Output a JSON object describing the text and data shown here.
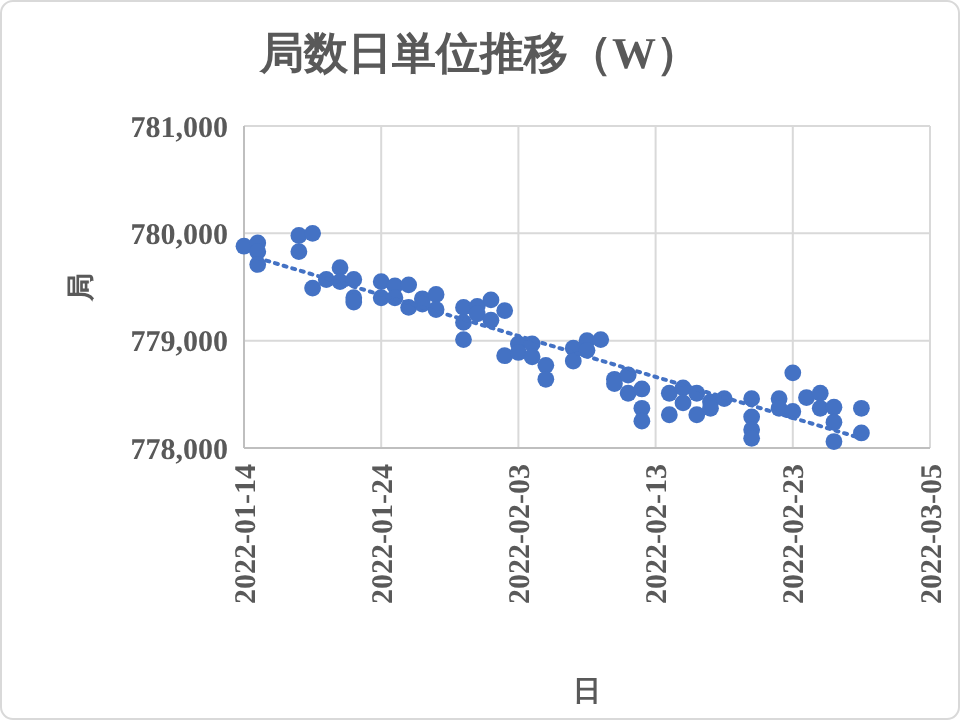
{
  "chart_data": {
    "type": "scatter",
    "title": "局数日単位推移（W）",
    "xlabel": "日",
    "ylabel": "局",
    "xlim": [
      "2022-01-14",
      "2022-03-05"
    ],
    "xticks": [
      "2022-01-14",
      "2022-01-24",
      "2022-02-03",
      "2022-02-13",
      "2022-02-23",
      "2022-03-05"
    ],
    "ylim": [
      778000,
      781000
    ],
    "yticks": [
      {
        "value": 778000,
        "label": "778,000"
      },
      {
        "value": 779000,
        "label": "779,000"
      },
      {
        "value": 780000,
        "label": "780,000"
      },
      {
        "value": 781000,
        "label": "781,000"
      }
    ],
    "grid": true,
    "marker": "circle",
    "series": [
      {
        "color": "#4472c4",
        "x": [
          "2022-01-14",
          "2022-01-15",
          "2022-01-15",
          "2022-01-15",
          "2022-01-18",
          "2022-01-18",
          "2022-01-19",
          "2022-01-19",
          "2022-01-20",
          "2022-01-21",
          "2022-01-21",
          "2022-01-22",
          "2022-01-22",
          "2022-01-22",
          "2022-01-24",
          "2022-01-24",
          "2022-01-25",
          "2022-01-25",
          "2022-01-26",
          "2022-01-26",
          "2022-01-27",
          "2022-01-27",
          "2022-01-28",
          "2022-01-28",
          "2022-01-30",
          "2022-01-30",
          "2022-01-30",
          "2022-01-31",
          "2022-01-31",
          "2022-02-01",
          "2022-02-01",
          "2022-02-02",
          "2022-02-02",
          "2022-02-03",
          "2022-02-03",
          "2022-02-04",
          "2022-02-04",
          "2022-02-05",
          "2022-02-05",
          "2022-02-07",
          "2022-02-07",
          "2022-02-08",
          "2022-02-08",
          "2022-02-09",
          "2022-02-10",
          "2022-02-10",
          "2022-02-11",
          "2022-02-11",
          "2022-02-12",
          "2022-02-12",
          "2022-02-12",
          "2022-02-14",
          "2022-02-14",
          "2022-02-15",
          "2022-02-15",
          "2022-02-16",
          "2022-02-16",
          "2022-02-17",
          "2022-02-17",
          "2022-02-18",
          "2022-02-20",
          "2022-02-20",
          "2022-02-20",
          "2022-02-20",
          "2022-02-22",
          "2022-02-22",
          "2022-02-23",
          "2022-02-23",
          "2022-02-24",
          "2022-02-25",
          "2022-02-25",
          "2022-02-26",
          "2022-02-26",
          "2022-02-26",
          "2022-02-28",
          "2022-02-28"
        ],
        "values": [
          779880,
          779910,
          779830,
          779710,
          779980,
          779830,
          780000,
          779490,
          779570,
          779680,
          779550,
          779570,
          779400,
          779360,
          779550,
          779400,
          779510,
          779400,
          779520,
          779310,
          779390,
          779340,
          779430,
          779290,
          779310,
          779170,
          779010,
          779320,
          779250,
          779380,
          779190,
          779280,
          778860,
          778970,
          778890,
          778970,
          778850,
          778770,
          778640,
          778930,
          778810,
          779000,
          778910,
          779010,
          778640,
          778600,
          778680,
          778510,
          778550,
          778370,
          778250,
          778510,
          778310,
          778560,
          778420,
          778510,
          778310,
          778430,
          778370,
          778460,
          778460,
          778290,
          778170,
          778090,
          778460,
          778370,
          778700,
          778340,
          778470,
          778510,
          778370,
          778380,
          778240,
          778060,
          778370,
          778140
        ]
      },
      {
        "type": "line",
        "color": "#4472c4",
        "line_style": "dotted",
        "marker": "none",
        "x": [
          "2022-01-15",
          "2022-02-28"
        ],
        "values": [
          779770,
          778090
        ]
      }
    ]
  }
}
